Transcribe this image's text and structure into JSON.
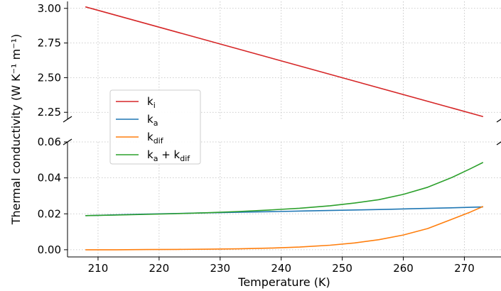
{
  "chart_data": {
    "type": "line",
    "xlabel": "Temperature (K)",
    "ylabel": "Thermal conductivity (W K⁻¹ m⁻¹)",
    "xlim": [
      205,
      276
    ],
    "x_ticks": [
      "210",
      "220",
      "230",
      "240",
      "250",
      "260",
      "270"
    ],
    "broken_axis": true,
    "upper_panel": {
      "ylim": [
        2.2,
        3.05
      ],
      "y_ticks": [
        "2.25",
        "2.50",
        "2.75",
        "3.00"
      ],
      "series_names": [
        "k_i"
      ]
    },
    "lower_panel": {
      "ylim": [
        -0.004,
        0.06
      ],
      "y_ticks": [
        "0.00",
        "0.02",
        "0.04",
        "0.06"
      ],
      "series_names": [
        "k_a",
        "k_dif",
        "k_a + k_dif"
      ]
    },
    "grid": true,
    "grid_style": "dotted",
    "legend_position": "center-left",
    "series": [
      {
        "name": "k_i",
        "color": "#d62728",
        "x": [
          208,
          273
        ],
        "y": [
          3.01,
          2.22
        ]
      },
      {
        "name": "k_a",
        "color": "#1f77b4",
        "x": [
          208,
          212.5,
          217,
          221.5,
          226,
          230.5,
          235,
          239.5,
          244,
          248.5,
          253,
          257.5,
          262,
          266.5,
          271,
          273
        ],
        "y": [
          0.019,
          0.0194,
          0.0198,
          0.0201,
          0.0204,
          0.0207,
          0.021,
          0.0213,
          0.0216,
          0.0219,
          0.0222,
          0.0225,
          0.0229,
          0.0232,
          0.0236,
          0.0238
        ]
      },
      {
        "name": "k_dif",
        "color": "#ff7f0e",
        "x": [
          208,
          213,
          218,
          223,
          228,
          233,
          238,
          243,
          248,
          252,
          256,
          260,
          264,
          268,
          271,
          273
        ],
        "y": [
          0.0,
          0.0,
          0.0001,
          0.0002,
          0.0003,
          0.0005,
          0.0009,
          0.0015,
          0.0025,
          0.0038,
          0.0056,
          0.0082,
          0.0118,
          0.017,
          0.021,
          0.024
        ]
      },
      {
        "name": "k_a + k_dif",
        "color": "#2ca02c",
        "x": [
          208,
          213,
          218,
          223,
          228,
          233,
          238,
          243,
          248,
          252,
          256,
          260,
          264,
          268,
          271,
          273
        ],
        "y": [
          0.019,
          0.0193,
          0.0197,
          0.0201,
          0.0206,
          0.0213,
          0.0221,
          0.0231,
          0.0245,
          0.026,
          0.0279,
          0.0308,
          0.0348,
          0.0403,
          0.0451,
          0.0485
        ]
      }
    ],
    "legend": [
      {
        "base": "k",
        "sub": "i",
        "rest": "",
        "rest_sub": "",
        "color": "#d62728"
      },
      {
        "base": "k",
        "sub": "a",
        "rest": "",
        "rest_sub": "",
        "color": "#1f77b4"
      },
      {
        "base": "k",
        "sub": "dif",
        "rest": "",
        "rest_sub": "",
        "color": "#ff7f0e"
      },
      {
        "base": "k",
        "sub": "a",
        "rest": " + k",
        "rest_sub": "dif",
        "color": "#2ca02c"
      }
    ]
  }
}
